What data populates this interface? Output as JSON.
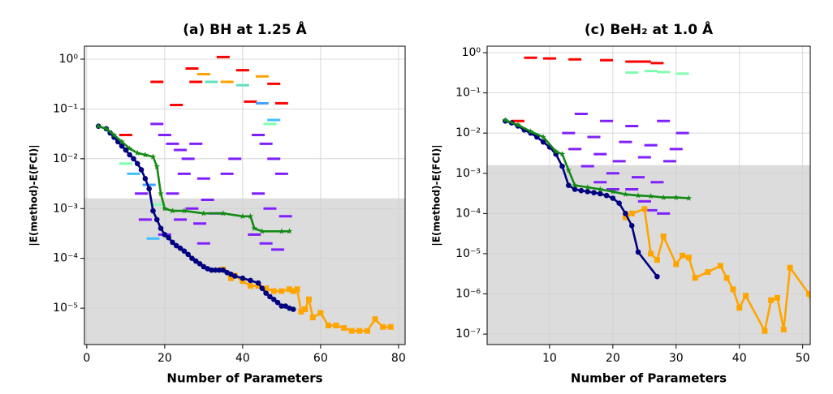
{
  "chart_data": [
    {
      "type": "line",
      "title": "(a) BH at 1.25 Å",
      "xlabel": "Number of Parameters",
      "ylabel": "|E(method)-E(FCI)|",
      "log_y": true,
      "grid": true,
      "threshold": 0.0016,
      "threshold_color": "#dcdcdc",
      "xlim": [
        -0.6,
        81.7
      ],
      "ylim": [
        1.86e-06,
        1.82
      ],
      "xticks": [
        0,
        20,
        40,
        60,
        80
      ],
      "yticks": [
        {
          "value": 1,
          "label": "10⁰"
        },
        {
          "value": 0.1,
          "label": "10⁻¹"
        },
        {
          "value": 0.01,
          "label": "10⁻²"
        },
        {
          "value": 0.001,
          "label": "10⁻³"
        },
        {
          "value": 0.0001,
          "label": "10⁻⁴"
        },
        {
          "value": 1e-05,
          "label": "10⁻⁵"
        }
      ],
      "dashes": {
        "x": [
          35,
          27,
          40,
          18,
          48,
          28,
          42,
          23,
          50,
          10,
          30,
          45,
          36,
          32,
          40,
          45,
          48,
          47,
          10,
          12,
          16,
          18,
          17,
          18,
          20,
          22,
          24,
          26,
          28,
          25,
          30,
          22,
          27,
          31,
          24,
          29,
          33,
          20,
          44,
          46,
          48,
          50,
          44,
          47,
          51,
          43,
          46,
          49,
          38,
          36,
          15,
          14,
          30
        ],
        "values": [
          1.1,
          0.65,
          0.6,
          0.35,
          0.32,
          0.35,
          0.14,
          0.12,
          0.13,
          0.03,
          0.5,
          0.45,
          0.35,
          0.35,
          0.3,
          0.13,
          0.06,
          0.05,
          0.008,
          0.005,
          0.003,
          0.0012,
          0.00025,
          0.05,
          0.03,
          0.02,
          0.015,
          0.01,
          0.02,
          0.005,
          0.004,
          0.002,
          0.001,
          0.0015,
          0.0006,
          0.0005,
          0.0008,
          0.0003,
          0.03,
          0.02,
          0.01,
          0.005,
          0.002,
          0.001,
          0.0007,
          0.0003,
          0.0002,
          0.00015,
          0.01,
          0.005,
          0.0006,
          0.002,
          0.0002
        ],
        "colors": [
          "#ff0000",
          "#ff0000",
          "#ff0000",
          "#ff0000",
          "#ff0000",
          "#ff0000",
          "#ff0000",
          "#ff0000",
          "#ff0000",
          "#ff0000",
          "#ffa000",
          "#ffa000",
          "#ffa000",
          "#60e0c0",
          "#60e0c0",
          "#40a0ff",
          "#40c0ff",
          "#80ffb0",
          "#80ffb0",
          "#40c0ff",
          "#40a0ff",
          "#80ffb0",
          "#40c0ff",
          "#8020ff",
          "#8020ff",
          "#8020ff",
          "#8020ff",
          "#8020ff",
          "#8020ff",
          "#8020ff",
          "#8020ff",
          "#8020ff",
          "#8020ff",
          "#8020ff",
          "#8020ff",
          "#8020ff",
          "#8020ff",
          "#8020ff",
          "#8020ff",
          "#8020ff",
          "#8020ff",
          "#8020ff",
          "#8020ff",
          "#8020ff",
          "#8020ff",
          "#8020ff",
          "#8020ff",
          "#8020ff",
          "#8020ff",
          "#8020ff",
          "#8020ff",
          "#8020ff",
          "#8020ff"
        ]
      },
      "series": [
        {
          "color": "#ffa500",
          "marker": "square",
          "x": [
            35,
            37,
            38,
            40,
            42,
            44,
            46,
            48,
            50,
            52,
            53,
            54,
            55,
            56,
            57,
            58,
            60,
            62,
            64,
            66,
            68,
            70,
            72,
            74,
            76,
            78
          ],
          "values": [
            6e-05,
            4e-05,
            4.5e-05,
            3.5e-05,
            2.8e-05,
            2.8e-05,
            2.5e-05,
            2.2e-05,
            2.2e-05,
            2.4e-05,
            2.2e-05,
            2.4e-05,
            8.5e-06,
            9.5e-06,
            1.5e-05,
            6.5e-06,
            8e-06,
            4.5e-06,
            4.5e-06,
            4e-06,
            3.5e-06,
            3.5e-06,
            3.5e-06,
            6e-06,
            4.2e-06,
            4.2e-06
          ]
        },
        {
          "color": "#000080",
          "marker": "circle",
          "x": [
            3,
            5,
            6,
            7,
            8,
            9,
            10,
            11,
            12,
            13,
            14,
            15,
            16,
            17,
            18,
            19,
            20,
            21,
            22,
            23,
            24,
            25,
            26,
            27,
            28,
            29,
            30,
            31,
            32,
            33,
            34,
            35,
            36,
            37,
            38,
            40,
            42,
            44,
            45,
            46,
            47,
            48,
            49,
            50,
            51,
            52,
            53
          ],
          "values": [
            0.045,
            0.04,
            0.033,
            0.027,
            0.022,
            0.018,
            0.015,
            0.012,
            0.01,
            0.008,
            0.006,
            0.004,
            0.0025,
            0.0009,
            0.0006,
            0.0004,
            0.0003,
            0.00026,
            0.00021,
            0.00018,
            0.00016,
            0.00014,
            0.00012,
            0.0001,
            8.8e-05,
            7.8e-05,
            6.8e-05,
            6.2e-05,
            5.8e-05,
            5.8e-05,
            5.8e-05,
            5.8e-05,
            5.2e-05,
            4.8e-05,
            4.4e-05,
            4e-05,
            3.6e-05,
            3.2e-05,
            2.5e-05,
            2e-05,
            1.7e-05,
            1.5e-05,
            1.3e-05,
            1.1e-05,
            1.1e-05,
            1e-05,
            9.5e-06
          ]
        },
        {
          "color": "#138a13",
          "marker": "star",
          "x": [
            3,
            5,
            7,
            9,
            11,
            13,
            15,
            17,
            18,
            19,
            20,
            22,
            25,
            30,
            35,
            40,
            42,
            43,
            45,
            50,
            52
          ],
          "values": [
            0.045,
            0.04,
            0.03,
            0.022,
            0.016,
            0.013,
            0.012,
            0.011,
            0.007,
            0.002,
            0.001,
            0.0009,
            0.0009,
            0.0008,
            0.0008,
            0.0007,
            0.0007,
            0.0004,
            0.00035,
            0.00035,
            0.00035
          ]
        }
      ]
    },
    {
      "type": "line",
      "title": "(c) BeH₂ at 1.0 Å",
      "xlabel": "Number of Parameters",
      "ylabel": "|E(method)-E(FCI)|",
      "log_y": true,
      "grid": true,
      "threshold": 0.0016,
      "threshold_color": "#dcdcdc",
      "xlim": [
        0.13,
        51.2
      ],
      "ylim": [
        5.5e-08,
        1.45
      ],
      "xticks": [
        10,
        20,
        30,
        40,
        50
      ],
      "yticks": [
        {
          "value": 1,
          "label": "10⁰"
        },
        {
          "value": 0.1,
          "label": "10⁻¹"
        },
        {
          "value": 0.01,
          "label": "10⁻²"
        },
        {
          "value": 0.001,
          "label": "10⁻³"
        },
        {
          "value": 0.0001,
          "label": "10⁻⁴"
        },
        {
          "value": 1e-05,
          "label": "10⁻⁵"
        },
        {
          "value": 1e-06,
          "label": "10⁻⁶"
        },
        {
          "value": 1e-07,
          "label": "10⁻⁷"
        }
      ],
      "dashes": {
        "x": [
          7,
          10,
          14,
          19,
          23,
          27,
          5,
          25,
          23,
          28,
          31,
          26,
          15,
          19,
          23,
          28,
          31,
          13,
          17,
          22,
          26,
          30,
          14,
          18,
          21,
          25,
          29,
          16,
          20,
          24,
          27,
          23,
          25,
          26,
          28,
          20,
          18
        ],
        "values": [
          0.75,
          0.72,
          0.68,
          0.65,
          0.6,
          0.55,
          0.02,
          0.6,
          0.32,
          0.33,
          0.3,
          0.35,
          0.03,
          0.02,
          0.015,
          0.02,
          0.01,
          0.01,
          0.008,
          0.006,
          0.005,
          0.004,
          0.004,
          0.003,
          0.002,
          0.0025,
          0.002,
          0.0015,
          0.001,
          0.0008,
          0.0006,
          0.0004,
          0.0002,
          0.00012,
          0.0001,
          0.0004,
          0.0006
        ],
        "colors": [
          "#ff0000",
          "#ff0000",
          "#ff0000",
          "#ff0000",
          "#ff0000",
          "#ff0000",
          "#ff0000",
          "#ff0000",
          "#80ffb0",
          "#80ffb0",
          "#80ffb0",
          "#80ffb0",
          "#8020ff",
          "#8020ff",
          "#8020ff",
          "#8020ff",
          "#8020ff",
          "#8020ff",
          "#8020ff",
          "#8020ff",
          "#8020ff",
          "#8020ff",
          "#8020ff",
          "#8020ff",
          "#8020ff",
          "#8020ff",
          "#8020ff",
          "#8020ff",
          "#8020ff",
          "#8020ff",
          "#8020ff",
          "#8020ff",
          "#8020ff",
          "#8020ff",
          "#8020ff",
          "#8020ff",
          "#8020ff"
        ]
      },
      "series": [
        {
          "color": "#ffa500",
          "marker": "square",
          "x": [
            22,
            23,
            25,
            26,
            27,
            28,
            30,
            31,
            32,
            33,
            35,
            37,
            38,
            39,
            40,
            41,
            44,
            45,
            46,
            47,
            48,
            51,
            52
          ],
          "values": [
            8e-05,
            0.0001,
            0.00013,
            1e-05,
            7e-06,
            2.7e-05,
            5.5e-06,
            9e-06,
            8e-06,
            2.5e-06,
            3.5e-06,
            5e-06,
            2.5e-06,
            1.3e-06,
            4.5e-07,
            9e-07,
            1.2e-07,
            7e-07,
            8e-07,
            1.3e-07,
            4.5e-06,
            1e-06,
            2.5e-07
          ]
        },
        {
          "color": "#000080",
          "marker": "circle",
          "x": [
            3,
            4,
            5,
            6,
            7,
            8,
            9,
            10,
            11,
            12,
            13,
            14,
            15,
            16,
            17,
            18,
            19,
            20,
            21,
            22,
            23,
            24,
            27
          ],
          "values": [
            0.02,
            0.018,
            0.015,
            0.012,
            0.01,
            0.008,
            0.006,
            0.0045,
            0.003,
            0.0015,
            0.0005,
            0.0004,
            0.00037,
            0.00035,
            0.00033,
            0.00031,
            0.00028,
            0.00024,
            0.00018,
            0.0001,
            5e-05,
            1.1e-05,
            2.7e-06
          ]
        },
        {
          "color": "#138a13",
          "marker": "star",
          "x": [
            3,
            5,
            7,
            9,
            11,
            12,
            13,
            14,
            16,
            18,
            20,
            22,
            24,
            26,
            28,
            30,
            32
          ],
          "values": [
            0.021,
            0.016,
            0.011,
            0.008,
            0.0035,
            0.003,
            0.0012,
            0.0005,
            0.00045,
            0.0004,
            0.00035,
            0.0003,
            0.00028,
            0.00027,
            0.00025,
            0.00025,
            0.00024
          ]
        }
      ]
    }
  ]
}
